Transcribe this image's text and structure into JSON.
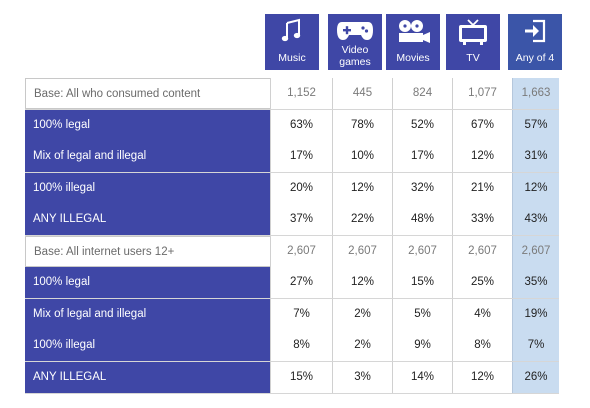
{
  "columns": [
    {
      "label": "Music",
      "icon": "music-note-icon"
    },
    {
      "label": "Video games",
      "icon": "gamepad-icon"
    },
    {
      "label": "Movies",
      "icon": "film-reel-icon"
    },
    {
      "label": "TV",
      "icon": "tv-icon"
    },
    {
      "label": "Any of 4",
      "icon": "enter-icon"
    }
  ],
  "colors": {
    "header": "#3f47a6",
    "row_label": "#3f47a6",
    "any_col": "#c9dcf0"
  },
  "chart_data": {
    "type": "table",
    "columns": [
      "Music",
      "Video games",
      "Movies",
      "TV",
      "Any of 4"
    ],
    "sections": [
      {
        "base_label": "Base: All who consumed content",
        "base_values": [
          "1,152",
          "445",
          "824",
          "1,077",
          "1,663"
        ],
        "rows": [
          {
            "label": "100% legal",
            "values": [
              "63%",
              "78%",
              "52%",
              "67%",
              "57%"
            ]
          },
          {
            "label": "Mix of legal and illegal",
            "values": [
              "17%",
              "10%",
              "17%",
              "12%",
              "31%"
            ]
          },
          {
            "label": "100% illegal",
            "values": [
              "20%",
              "12%",
              "32%",
              "21%",
              "12%"
            ]
          },
          {
            "label": "ANY ILLEGAL",
            "values": [
              "37%",
              "22%",
              "48%",
              "33%",
              "43%"
            ]
          }
        ]
      },
      {
        "base_label": "Base: All internet users 12+",
        "base_values": [
          "2,607",
          "2,607",
          "2,607",
          "2,607",
          "2,607"
        ],
        "rows": [
          {
            "label": "100% legal",
            "values": [
              "27%",
              "12%",
              "15%",
              "25%",
              "35%"
            ]
          },
          {
            "label": "Mix of legal and illegal",
            "values": [
              "7%",
              "2%",
              "5%",
              "4%",
              "19%"
            ]
          },
          {
            "label": "100% illegal",
            "values": [
              "8%",
              "2%",
              "9%",
              "8%",
              "7%"
            ]
          },
          {
            "label": "ANY ILLEGAL",
            "values": [
              "15%",
              "3%",
              "14%",
              "12%",
              "26%"
            ]
          }
        ]
      }
    ]
  }
}
